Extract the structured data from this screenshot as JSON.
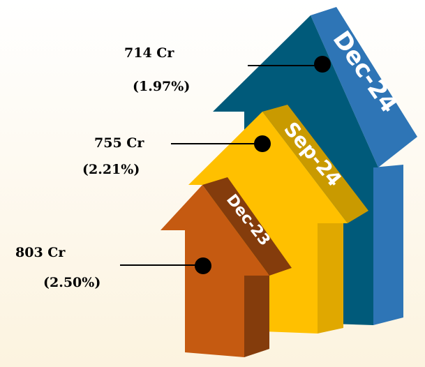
{
  "arrows": [
    {
      "period": "Dec-23",
      "amount": "803 Cr",
      "share": "(2.50%)"
    },
    {
      "period": "Sep-24",
      "amount": "755 Cr",
      "share": "(2.21%)"
    },
    {
      "period": "Dec-24",
      "amount": "714 Cr",
      "share": "(1.97%)"
    }
  ]
}
